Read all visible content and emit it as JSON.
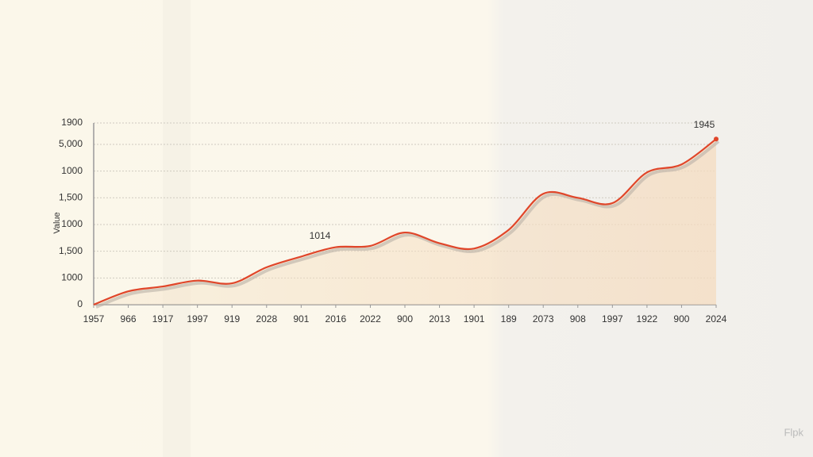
{
  "chart_data": {
    "type": "line",
    "y_label": "Value",
    "categories": [
      "1957",
      "966",
      "1917",
      "1997",
      "919",
      "2028",
      "901",
      "2016",
      "2022",
      "900",
      "2013",
      "1901",
      "189",
      "2073",
      "908",
      "1997",
      "1922",
      "900",
      "2024"
    ],
    "series": [
      {
        "color": "#e0462a",
        "values": [
          0,
          0.5,
          0.68,
          0.9,
          0.8,
          1.4,
          1.8,
          2.15,
          2.2,
          2.7,
          2.3,
          2.1,
          2.8,
          4.15,
          4.0,
          3.8,
          4.95,
          5.25,
          6.2
        ]
      }
    ],
    "ylim": [
      0,
      6.8
    ],
    "yticks": [
      0,
      {
        "value": 1,
        "label": "1000"
      },
      {
        "value": 2,
        "label": "1,500"
      },
      {
        "value": 3,
        "label": "1000"
      },
      {
        "value": 4,
        "label": "1,500"
      },
      {
        "value": 5,
        "label": "1000"
      },
      {
        "value": 6,
        "label": "5,000"
      },
      {
        "value": 6.8,
        "label": "1900"
      }
    ],
    "grid": true,
    "annotations": [
      "1014",
      "1945"
    ],
    "watermark": "Flpk"
  }
}
